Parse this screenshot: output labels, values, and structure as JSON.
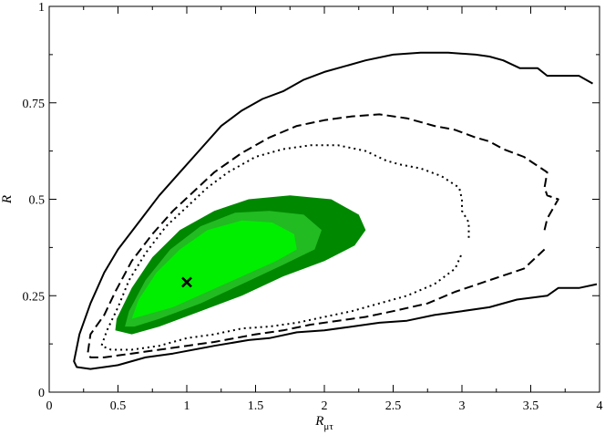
{
  "chart_data": {
    "type": "contour",
    "xlabel_main": "R",
    "xlabel_sub": "μτ",
    "ylabel": "R",
    "xlim": [
      0,
      4
    ],
    "ylim": [
      0,
      1
    ],
    "xticks": [
      "0",
      "0.5",
      "1",
      "1.5",
      "2",
      "2.5",
      "3",
      "3.5",
      "4"
    ],
    "yticks": [
      "0",
      "0.25",
      "0.5",
      "0.75",
      "1"
    ],
    "best_fit": {
      "x": 1.0,
      "y": 0.285
    },
    "colors": {
      "fill_outer": "#008800",
      "fill_middle": "#22bb22",
      "fill_inner": "#00ee00"
    },
    "filled_regions": [
      {
        "name": "outer",
        "points": [
          [
            0.48,
            0.16
          ],
          [
            0.49,
            0.19
          ],
          [
            0.6,
            0.27
          ],
          [
            0.75,
            0.35
          ],
          [
            0.95,
            0.42
          ],
          [
            1.2,
            0.47
          ],
          [
            1.45,
            0.5
          ],
          [
            1.75,
            0.51
          ],
          [
            2.05,
            0.5
          ],
          [
            2.25,
            0.46
          ],
          [
            2.3,
            0.42
          ],
          [
            2.22,
            0.38
          ],
          [
            2.0,
            0.34
          ],
          [
            1.7,
            0.3
          ],
          [
            1.4,
            0.25
          ],
          [
            1.1,
            0.21
          ],
          [
            0.8,
            0.17
          ],
          [
            0.6,
            0.15
          ]
        ]
      },
      {
        "name": "middle",
        "points": [
          [
            0.55,
            0.17
          ],
          [
            0.58,
            0.21
          ],
          [
            0.7,
            0.29
          ],
          [
            0.88,
            0.37
          ],
          [
            1.1,
            0.43
          ],
          [
            1.35,
            0.465
          ],
          [
            1.6,
            0.47
          ],
          [
            1.85,
            0.46
          ],
          [
            1.98,
            0.42
          ],
          [
            1.93,
            0.37
          ],
          [
            1.7,
            0.33
          ],
          [
            1.4,
            0.28
          ],
          [
            1.1,
            0.23
          ],
          [
            0.8,
            0.19
          ],
          [
            0.62,
            0.17
          ]
        ]
      },
      {
        "name": "inner",
        "points": [
          [
            0.6,
            0.19
          ],
          [
            0.65,
            0.24
          ],
          [
            0.78,
            0.31
          ],
          [
            0.95,
            0.37
          ],
          [
            1.15,
            0.42
          ],
          [
            1.4,
            0.445
          ],
          [
            1.62,
            0.44
          ],
          [
            1.78,
            0.41
          ],
          [
            1.8,
            0.37
          ],
          [
            1.65,
            0.34
          ],
          [
            1.4,
            0.3
          ],
          [
            1.15,
            0.26
          ],
          [
            0.9,
            0.22
          ],
          [
            0.7,
            0.2
          ]
        ]
      }
    ],
    "line_contours": [
      {
        "style": "solid",
        "points": [
          [
            3.95,
            0.8
          ],
          [
            3.85,
            0.82
          ],
          [
            3.62,
            0.82
          ],
          [
            3.55,
            0.84
          ],
          [
            3.42,
            0.84
          ],
          [
            3.3,
            0.86
          ],
          [
            3.2,
            0.87
          ],
          [
            3.1,
            0.875
          ],
          [
            2.9,
            0.88
          ],
          [
            2.7,
            0.88
          ],
          [
            2.5,
            0.875
          ],
          [
            2.3,
            0.86
          ],
          [
            2.15,
            0.845
          ],
          [
            2.0,
            0.83
          ],
          [
            1.85,
            0.81
          ],
          [
            1.7,
            0.78
          ],
          [
            1.55,
            0.76
          ],
          [
            1.4,
            0.73
          ],
          [
            1.25,
            0.69
          ],
          [
            1.1,
            0.63
          ],
          [
            0.95,
            0.57
          ],
          [
            0.8,
            0.51
          ],
          [
            0.65,
            0.44
          ],
          [
            0.5,
            0.37
          ],
          [
            0.4,
            0.31
          ],
          [
            0.3,
            0.23
          ],
          [
            0.22,
            0.15
          ],
          [
            0.18,
            0.08
          ],
          [
            0.2,
            0.065
          ],
          [
            0.3,
            0.06
          ],
          [
            0.5,
            0.07
          ],
          [
            0.7,
            0.09
          ],
          [
            0.9,
            0.1
          ],
          [
            1.2,
            0.12
          ],
          [
            1.45,
            0.135
          ],
          [
            1.6,
            0.14
          ],
          [
            1.8,
            0.155
          ],
          [
            2.0,
            0.16
          ],
          [
            2.2,
            0.17
          ],
          [
            2.4,
            0.18
          ],
          [
            2.6,
            0.185
          ],
          [
            2.8,
            0.2
          ],
          [
            3.0,
            0.21
          ],
          [
            3.2,
            0.22
          ],
          [
            3.4,
            0.24
          ],
          [
            3.62,
            0.25
          ],
          [
            3.7,
            0.27
          ],
          [
            3.85,
            0.27
          ],
          [
            3.98,
            0.28
          ]
        ]
      },
      {
        "style": "dashed",
        "points": [
          [
            3.6,
            0.42
          ],
          [
            3.62,
            0.45
          ],
          [
            3.7,
            0.5
          ],
          [
            3.62,
            0.51
          ],
          [
            3.6,
            0.53
          ],
          [
            3.62,
            0.57
          ],
          [
            3.45,
            0.61
          ],
          [
            3.3,
            0.63
          ],
          [
            3.2,
            0.65
          ],
          [
            3.1,
            0.66
          ],
          [
            2.95,
            0.68
          ],
          [
            2.8,
            0.69
          ],
          [
            2.6,
            0.71
          ],
          [
            2.4,
            0.72
          ],
          [
            2.2,
            0.715
          ],
          [
            2.0,
            0.705
          ],
          [
            1.8,
            0.69
          ],
          [
            1.6,
            0.66
          ],
          [
            1.4,
            0.62
          ],
          [
            1.2,
            0.57
          ],
          [
            1.05,
            0.52
          ],
          [
            0.9,
            0.47
          ],
          [
            0.75,
            0.41
          ],
          [
            0.6,
            0.34
          ],
          [
            0.48,
            0.26
          ],
          [
            0.4,
            0.2
          ],
          [
            0.3,
            0.15
          ],
          [
            0.28,
            0.1
          ],
          [
            0.3,
            0.09
          ],
          [
            0.4,
            0.09
          ],
          [
            0.6,
            0.1
          ],
          [
            0.8,
            0.11
          ],
          [
            1.0,
            0.12
          ],
          [
            1.2,
            0.13
          ],
          [
            1.5,
            0.15
          ],
          [
            1.7,
            0.16
          ],
          [
            1.9,
            0.175
          ],
          [
            2.1,
            0.185
          ],
          [
            2.3,
            0.195
          ],
          [
            2.5,
            0.21
          ],
          [
            2.75,
            0.23
          ],
          [
            2.95,
            0.26
          ],
          [
            3.2,
            0.29
          ],
          [
            3.45,
            0.32
          ],
          [
            3.6,
            0.37
          ]
        ]
      },
      {
        "style": "dotted",
        "points": [
          [
            3.05,
            0.4
          ],
          [
            3.05,
            0.44
          ],
          [
            3.0,
            0.47
          ],
          [
            3.0,
            0.5
          ],
          [
            2.98,
            0.53
          ],
          [
            2.85,
            0.56
          ],
          [
            2.7,
            0.58
          ],
          [
            2.55,
            0.59
          ],
          [
            2.45,
            0.6
          ],
          [
            2.3,
            0.625
          ],
          [
            2.1,
            0.64
          ],
          [
            1.9,
            0.64
          ],
          [
            1.7,
            0.63
          ],
          [
            1.5,
            0.61
          ],
          [
            1.3,
            0.57
          ],
          [
            1.15,
            0.53
          ],
          [
            1.0,
            0.48
          ],
          [
            0.85,
            0.43
          ],
          [
            0.7,
            0.36
          ],
          [
            0.58,
            0.29
          ],
          [
            0.5,
            0.22
          ],
          [
            0.42,
            0.16
          ],
          [
            0.38,
            0.12
          ],
          [
            0.45,
            0.11
          ],
          [
            0.6,
            0.11
          ],
          [
            0.8,
            0.12
          ],
          [
            1.0,
            0.14
          ],
          [
            1.2,
            0.15
          ],
          [
            1.4,
            0.165
          ],
          [
            1.6,
            0.17
          ],
          [
            1.8,
            0.18
          ],
          [
            2.0,
            0.195
          ],
          [
            2.2,
            0.21
          ],
          [
            2.4,
            0.23
          ],
          [
            2.6,
            0.25
          ],
          [
            2.8,
            0.28
          ],
          [
            2.95,
            0.32
          ],
          [
            3.0,
            0.36
          ]
        ]
      }
    ]
  }
}
